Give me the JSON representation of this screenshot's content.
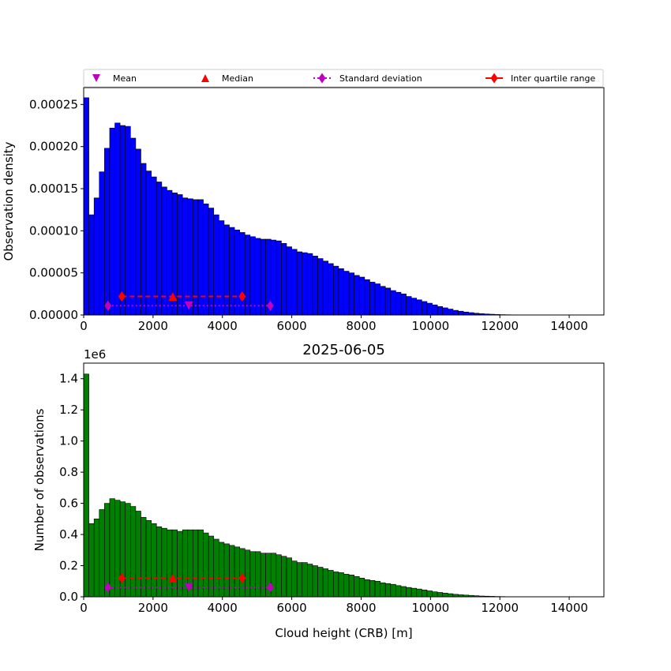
{
  "legend": {
    "items": [
      {
        "label": "Mean",
        "marker": "triangle-down",
        "color": "#bf00bf"
      },
      {
        "label": "Median",
        "marker": "triangle-up",
        "color": "#ff0000"
      },
      {
        "label": "Standard deviation",
        "marker": "diamond",
        "color": "#bf00bf",
        "line": "dotted"
      },
      {
        "label": "Inter quartile range",
        "marker": "diamond",
        "color": "#ff0000",
        "line": "solid"
      }
    ]
  },
  "chart_data": [
    {
      "type": "bar",
      "subtype": "histogram",
      "title": "",
      "xlabel": "",
      "ylabel": "Observation density",
      "xlim": [
        0,
        15000
      ],
      "ylim": [
        0,
        0.00027
      ],
      "xticks": [
        "0",
        "2000",
        "4000",
        "6000",
        "8000",
        "10000",
        "12000",
        "14000"
      ],
      "yticks": [
        "0.00000",
        "0.00005",
        "0.00010",
        "0.00015",
        "0.00020",
        "0.00025"
      ],
      "bar_color": "#0000ff",
      "bin_width": 150,
      "bin_start": 0,
      "values": [
        0.000258,
        0.000119,
        0.000139,
        0.00017,
        0.000198,
        0.000222,
        0.000228,
        0.000225,
        0.000224,
        0.00021,
        0.000197,
        0.00018,
        0.000171,
        0.000164,
        0.000158,
        0.000152,
        0.000148,
        0.000145,
        0.000143,
        0.000139,
        0.000138,
        0.000137,
        0.000137,
        0.000132,
        0.000127,
        0.000119,
        0.000112,
        0.000107,
        0.000104,
        0.000101,
        9.8e-05,
        9.5e-05,
        9.3e-05,
        9.1e-05,
        9e-05,
        9e-05,
        8.9e-05,
        8.8e-05,
        8.5e-05,
        8.1e-05,
        7.8e-05,
        7.5e-05,
        7.4e-05,
        7.3e-05,
        7e-05,
        6.7e-05,
        6.4e-05,
        6.1e-05,
        5.8e-05,
        5.5e-05,
        5.2e-05,
        5e-05,
        4.7e-05,
        4.5e-05,
        4.2e-05,
        3.9e-05,
        3.7e-05,
        3.4e-05,
        3.2e-05,
        2.9e-05,
        2.7e-05,
        2.5e-05,
        2.2e-05,
        2e-05,
        1.8e-05,
        1.6e-05,
        1.4e-05,
        1.2e-05,
        1e-05,
        8.5e-06,
        7e-06,
        5.5e-06,
        4.5e-06,
        3.5e-06,
        2.8e-06,
        2.1e-06,
        1.6e-06,
        1.2e-06,
        9e-07,
        6e-07,
        4e-07,
        3e-07,
        2e-07,
        1e-07,
        5e-08,
        3e-08,
        2e-08,
        1e-08
      ],
      "stats": {
        "y": [
          1.1e-05,
          2.2e-05
        ],
        "mean": 3030,
        "median": 2570,
        "std_range": [
          700,
          5380
        ],
        "iqr_range": [
          1100,
          4570
        ]
      }
    },
    {
      "type": "bar",
      "subtype": "histogram",
      "title": "2025-06-05",
      "xlabel": "Cloud height (CRB) [m]",
      "ylabel": "Number of observations",
      "axis_offset_label": "1e6",
      "xlim": [
        0,
        15000
      ],
      "ylim": [
        0,
        1.5
      ],
      "xticks": [
        "0",
        "2000",
        "4000",
        "6000",
        "8000",
        "10000",
        "12000",
        "14000"
      ],
      "yticks": [
        "0.0",
        "0.2",
        "0.4",
        "0.6",
        "0.8",
        "1.0",
        "1.2",
        "1.4"
      ],
      "bar_color": "#008000",
      "bin_width": 150,
      "bin_start": 0,
      "values": [
        1.43,
        0.47,
        0.5,
        0.56,
        0.6,
        0.63,
        0.62,
        0.61,
        0.6,
        0.58,
        0.55,
        0.51,
        0.49,
        0.47,
        0.45,
        0.44,
        0.43,
        0.43,
        0.42,
        0.43,
        0.43,
        0.43,
        0.43,
        0.41,
        0.39,
        0.37,
        0.35,
        0.34,
        0.33,
        0.32,
        0.31,
        0.3,
        0.29,
        0.29,
        0.28,
        0.28,
        0.28,
        0.27,
        0.26,
        0.25,
        0.23,
        0.22,
        0.22,
        0.21,
        0.2,
        0.19,
        0.18,
        0.17,
        0.16,
        0.155,
        0.145,
        0.14,
        0.13,
        0.12,
        0.11,
        0.105,
        0.1,
        0.09,
        0.085,
        0.08,
        0.072,
        0.066,
        0.06,
        0.055,
        0.05,
        0.044,
        0.038,
        0.032,
        0.028,
        0.024,
        0.02,
        0.016,
        0.013,
        0.011,
        0.009,
        0.007,
        0.005,
        0.004,
        0.003,
        0.002,
        0.0015,
        0.001,
        0.0007,
        0.0004,
        0.0002,
        0.0001,
        5e-05,
        2e-05
      ],
      "stats": {
        "y": [
          0.06,
          0.12
        ],
        "mean": 3030,
        "median": 2570,
        "std_range": [
          700,
          5380
        ],
        "iqr_range": [
          1100,
          4570
        ]
      }
    }
  ]
}
